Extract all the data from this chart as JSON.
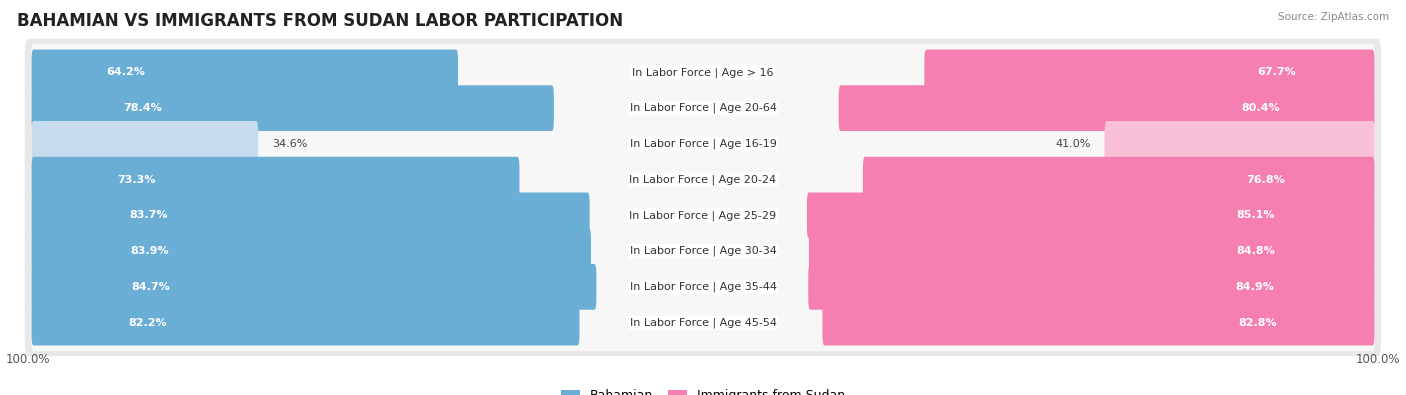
{
  "title": "BAHAMIAN VS IMMIGRANTS FROM SUDAN LABOR PARTICIPATION",
  "source": "Source: ZipAtlas.com",
  "categories": [
    "In Labor Force | Age > 16",
    "In Labor Force | Age 20-64",
    "In Labor Force | Age 16-19",
    "In Labor Force | Age 20-24",
    "In Labor Force | Age 25-29",
    "In Labor Force | Age 30-34",
    "In Labor Force | Age 35-44",
    "In Labor Force | Age 45-54"
  ],
  "bahamian": [
    64.2,
    78.4,
    34.6,
    73.3,
    83.7,
    83.9,
    84.7,
    82.2
  ],
  "sudan": [
    67.7,
    80.4,
    41.0,
    76.8,
    85.1,
    84.8,
    84.9,
    82.8
  ],
  "bahamian_color": "#6aaed6",
  "bahamian_light_color": "#c6dcee",
  "sudan_color": "#f47fb0",
  "sudan_light_color": "#f9c0d8",
  "row_bg_color": "#e8e8e8",
  "row_inner_color": "#f7f7f7",
  "max_val": 100.0,
  "legend_bahamian": "Bahamian",
  "legend_sudan": "Immigrants from Sudan",
  "background_color": "#ffffff",
  "title_fontsize": 12,
  "label_fontsize": 8,
  "value_fontsize": 8
}
